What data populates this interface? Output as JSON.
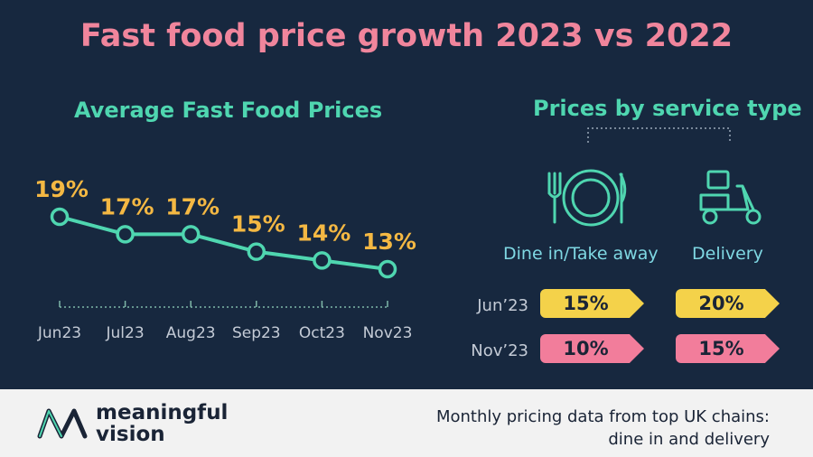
{
  "title": "Fast food price growth 2023 vs 2022",
  "left_subtitle": "Average Fast Food Prices",
  "right_subtitle": "Prices by service type",
  "chart_data": {
    "type": "line",
    "title": "Average Fast Food Prices",
    "categories": [
      "Jun23",
      "Jul23",
      "Aug23",
      "Sep23",
      "Oct23",
      "Nov23"
    ],
    "values": [
      19,
      17,
      17,
      15,
      14,
      13
    ],
    "value_labels": [
      "19%",
      "17%",
      "17%",
      "15%",
      "14%",
      "13%"
    ],
    "ylim": [
      10,
      22
    ],
    "grid": false,
    "line_color": "#4fd6b0",
    "label_color": "#f4b843"
  },
  "service_types": {
    "columns": [
      {
        "label": "Dine in/Take away",
        "icon": "plate-cutlery-icon"
      },
      {
        "label": "Delivery",
        "icon": "delivery-scooter-icon"
      }
    ],
    "rows": [
      {
        "label": "Jun’23",
        "color": "#f4d24a",
        "values": [
          "15%",
          "20%"
        ]
      },
      {
        "label": "Nov’23",
        "color": "#f27d9b",
        "values": [
          "10%",
          "15%"
        ]
      }
    ]
  },
  "footer": {
    "brand_line1": "meaningful",
    "brand_line2": "vision",
    "note_line1": "Monthly pricing data from top UK chains:",
    "note_line2": "dine in and delivery"
  }
}
